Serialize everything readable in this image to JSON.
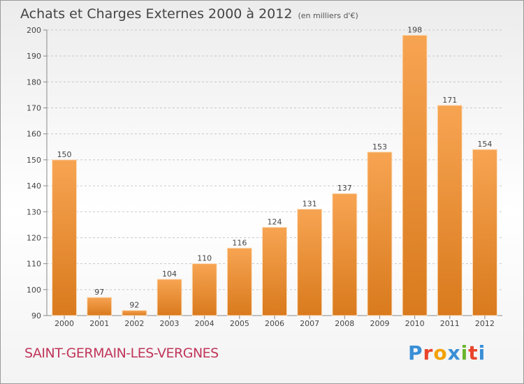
{
  "header": {
    "title": "Achats et Charges Externes 2000 à 2012",
    "unit": "(en milliers d'€)"
  },
  "footer": {
    "commune": "SAINT-GERMAIN-LES-VERGNES",
    "logo": "Proxiti"
  },
  "colors": {
    "bar_top": "#f7a452",
    "bar_bottom": "#d97a1d",
    "commune_text": "#c0365a",
    "logo_letters": [
      "#3a8fd6",
      "#e8442a",
      "#f2a200",
      "#3a8fd6",
      "#6bb52f",
      "#e8442a",
      "#3a8fd6"
    ]
  },
  "chart_data": {
    "type": "bar",
    "title": "Achats et Charges Externes 2000 à 2012",
    "categories": [
      "2000",
      "2001",
      "2002",
      "2003",
      "2004",
      "2005",
      "2006",
      "2007",
      "2008",
      "2009",
      "2010",
      "2011",
      "2012"
    ],
    "values": [
      150,
      97,
      92,
      104,
      110,
      116,
      124,
      131,
      137,
      153,
      198,
      171,
      154
    ],
    "ylim": [
      90,
      200
    ],
    "yticks": [
      90,
      100,
      110,
      120,
      130,
      140,
      150,
      160,
      170,
      180,
      190,
      200
    ],
    "grid": "horizontal-dashed",
    "legend": "none"
  }
}
